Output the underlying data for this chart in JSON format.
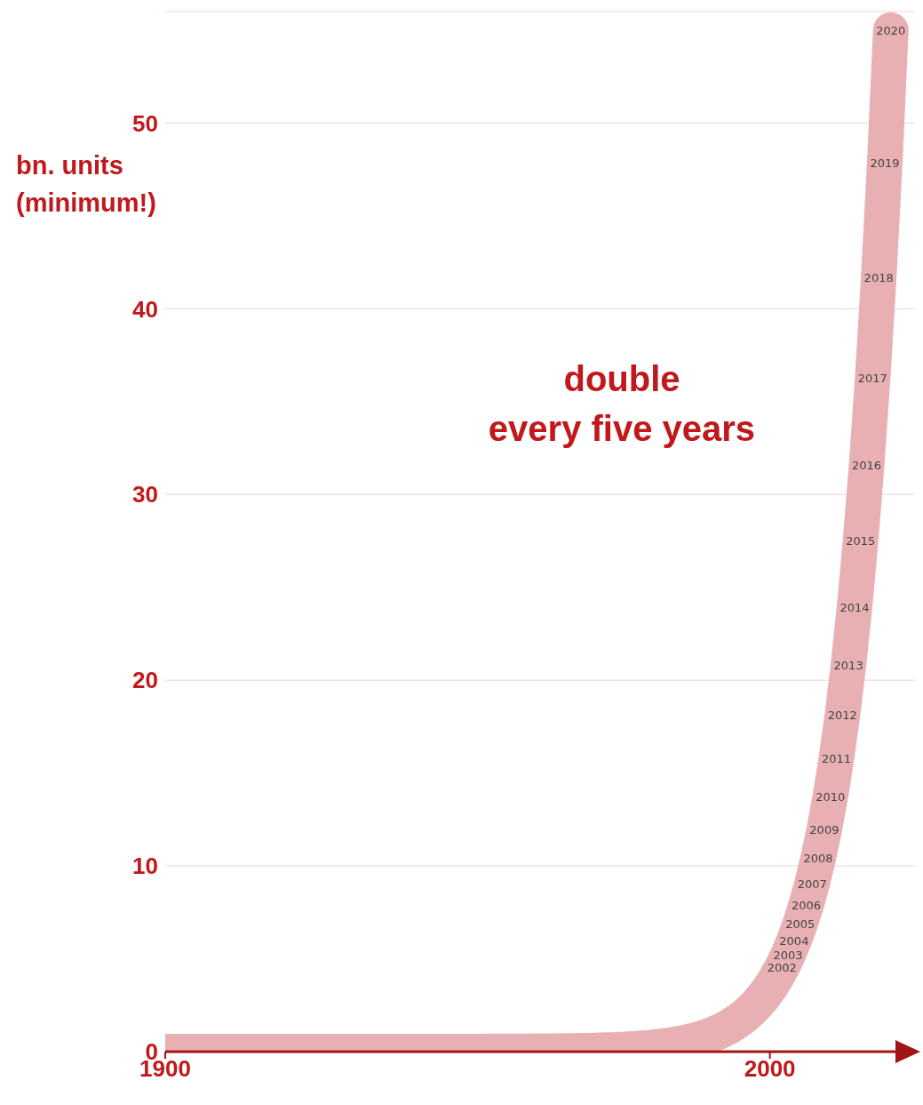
{
  "chart_data": {
    "type": "line",
    "ylabel": "bn. units (minimum!)",
    "annotations": [
      "double\nevery five years",
      {
        "text": "2002",
        "x": 2002,
        "y": 4.54
      },
      {
        "text": "2003",
        "x": 2003,
        "y": 5.21
      },
      {
        "text": "2004",
        "x": 2004,
        "y": 5.99
      },
      {
        "text": "2005",
        "x": 2005,
        "y": 6.88
      },
      {
        "text": "2006",
        "x": 2006,
        "y": 7.9
      },
      {
        "text": "2007",
        "x": 2007,
        "y": 9.07
      },
      {
        "text": "2008",
        "x": 2008,
        "y": 10.42
      },
      {
        "text": "2009",
        "x": 2009,
        "y": 11.97
      },
      {
        "text": "2010",
        "x": 2010,
        "y": 13.75
      },
      {
        "text": "2011",
        "x": 2011,
        "y": 15.79
      },
      {
        "text": "2012",
        "x": 2012,
        "y": 18.14
      },
      {
        "text": "2013",
        "x": 2013,
        "y": 20.84
      },
      {
        "text": "2014",
        "x": 2014,
        "y": 23.94
      },
      {
        "text": "2015",
        "x": 2015,
        "y": 27.5
      },
      {
        "text": "2016",
        "x": 2016,
        "y": 31.59
      },
      {
        "text": "2017",
        "x": 2017,
        "y": 36.29
      },
      {
        "text": "2018",
        "x": 2018,
        "y": 41.68
      },
      {
        "text": "2019",
        "x": 2019,
        "y": 47.88
      },
      {
        "text": "2020",
        "x": 2020,
        "y": 55
      }
    ],
    "x": [
      1900,
      1901,
      1902,
      1903,
      1904,
      1905,
      1906,
      1907,
      1908,
      1909,
      1910,
      1911,
      1912,
      1913,
      1914,
      1915,
      1916,
      1917,
      1918,
      1919,
      1920,
      1921,
      1922,
      1923,
      1924,
      1925,
      1926,
      1927,
      1928,
      1929,
      1930,
      1931,
      1932,
      1933,
      1934,
      1935,
      1936,
      1937,
      1938,
      1939,
      1940,
      1941,
      1942,
      1943,
      1944,
      1945,
      1946,
      1947,
      1948,
      1949,
      1950,
      1951,
      1952,
      1953,
      1954,
      1955,
      1956,
      1957,
      1958,
      1959,
      1960,
      1961,
      1962,
      1963,
      1964,
      1965,
      1966,
      1967,
      1968,
      1969,
      1970,
      1971,
      1972,
      1973,
      1974,
      1975,
      1976,
      1977,
      1978,
      1979,
      1980,
      1981,
      1982,
      1983,
      1984,
      1985,
      1986,
      1987,
      1988,
      1989,
      1990,
      1991,
      1992,
      1993,
      1994,
      1995,
      1996,
      1997,
      1998,
      1999,
      2000,
      2001,
      2002,
      2003,
      2004,
      2005,
      2006,
      2007,
      2008,
      2009,
      2010,
      2011,
      2012,
      2013,
      2014,
      2015,
      2016,
      2017,
      2018,
      2019,
      2020
    ],
    "series": [
      {
        "color": "#e8b0b2",
        "values": [
          0,
          0,
          0,
          0,
          0,
          0,
          0,
          0,
          0,
          0,
          0,
          0,
          0,
          0,
          0,
          0,
          0,
          0,
          0,
          0,
          0,
          0,
          0,
          0,
          0,
          0,
          0,
          0,
          0,
          0,
          0,
          0,
          0,
          0,
          0,
          0,
          0,
          0,
          0,
          0,
          0,
          0,
          0,
          0,
          0,
          0,
          0,
          0,
          0,
          0,
          0,
          0,
          0,
          0.01,
          0.01,
          0.01,
          0.01,
          0.01,
          0.01,
          0.01,
          0.01,
          0.02,
          0.02,
          0.02,
          0.02,
          0.03,
          0.03,
          0.04,
          0.04,
          0.05,
          0.05,
          0.06,
          0.07,
          0.08,
          0.09,
          0.11,
          0.12,
          0.14,
          0.16,
          0.19,
          0.21,
          0.25,
          0.28,
          0.33,
          0.37,
          0.43,
          0.49,
          0.57,
          0.65,
          0.75,
          0.86,
          0.99,
          1.13,
          1.3,
          1.5,
          1.72,
          1.97,
          2.27,
          2.61,
          2.99,
          3.44,
          3.95,
          4.54,
          5.21,
          5.99,
          6.88,
          7.9,
          9.07,
          10.42,
          11.97,
          13.75,
          15.79,
          18.14,
          20.84,
          23.94,
          27.5,
          31.59,
          36.29,
          41.68,
          47.88,
          55
        ]
      }
    ],
    "xlim": [
      1900,
      2024
    ],
    "xticks": [
      1900,
      2000
    ],
    "ylim": [
      0,
      56
    ],
    "yticks": [
      0,
      10,
      20,
      30,
      40,
      50
    ],
    "grid": "y",
    "legend": false,
    "marker": "none",
    "line_style": "solid"
  }
}
